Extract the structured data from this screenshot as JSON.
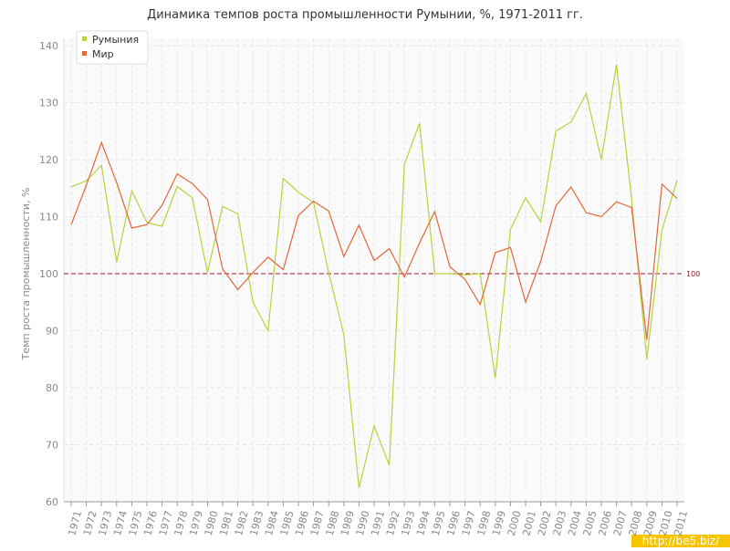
{
  "chart_data": {
    "type": "line",
    "title": "Динамика темпов роста промышленности Румынии, %, 1971-2011 гг.",
    "y_label": "Темп роста промышленности, %",
    "watermark": "http://be5.biz/",
    "categories": [
      "1971",
      "1972",
      "1973",
      "1974",
      "1975",
      "1976",
      "1977",
      "1978",
      "1979",
      "1980",
      "1981",
      "1982",
      "1983",
      "1984",
      "1985",
      "1986",
      "1987",
      "1988",
      "1989",
      "1990",
      "1991",
      "1992",
      "1993",
      "1994",
      "1995",
      "1996",
      "1997",
      "1998",
      "1999",
      "2000",
      "2001",
      "2002",
      "2003",
      "2004",
      "2005",
      "2006",
      "2007",
      "2008",
      "2009",
      "2010",
      "2011"
    ],
    "series": [
      {
        "name": "Румыния",
        "color": "#b5d43a",
        "values": [
          115.2,
          116.3,
          119,
          102,
          114.5,
          109,
          108.3,
          115.3,
          113.3,
          100.2,
          111.8,
          110.5,
          95,
          90,
          116.7,
          114.3,
          112.5,
          100.2,
          89.3,
          62.4,
          73.3,
          66.4,
          119.2,
          126.4,
          100,
          100,
          99.8,
          100,
          81.7,
          107.8,
          113.3,
          109.1,
          125,
          126.6,
          131.6,
          120,
          136.7,
          113,
          85,
          107.6,
          116.4
        ]
      },
      {
        "name": "Мир",
        "color": "#e0683a",
        "values": [
          108.6,
          115.5,
          123,
          116,
          108,
          108.6,
          112,
          117.5,
          115.8,
          113,
          100.8,
          97.2,
          100.2,
          102.9,
          100.7,
          110.2,
          112.7,
          111,
          103,
          108.5,
          102.3,
          104.4,
          99.4,
          105.4,
          110.9,
          101.2,
          99,
          94.6,
          103.7,
          104.6,
          95,
          102.2,
          111.9,
          115.2,
          110.7,
          110,
          112.6,
          111.6,
          88.4,
          115.7,
          113.2
        ]
      }
    ],
    "reference_line": {
      "value": 100,
      "color": "#8b1a2b"
    },
    "ylim": [
      60,
      140
    ],
    "yticks": [
      60,
      70,
      80,
      90,
      100,
      110,
      120,
      130,
      140
    ],
    "grid": true,
    "legend": "top-left"
  }
}
